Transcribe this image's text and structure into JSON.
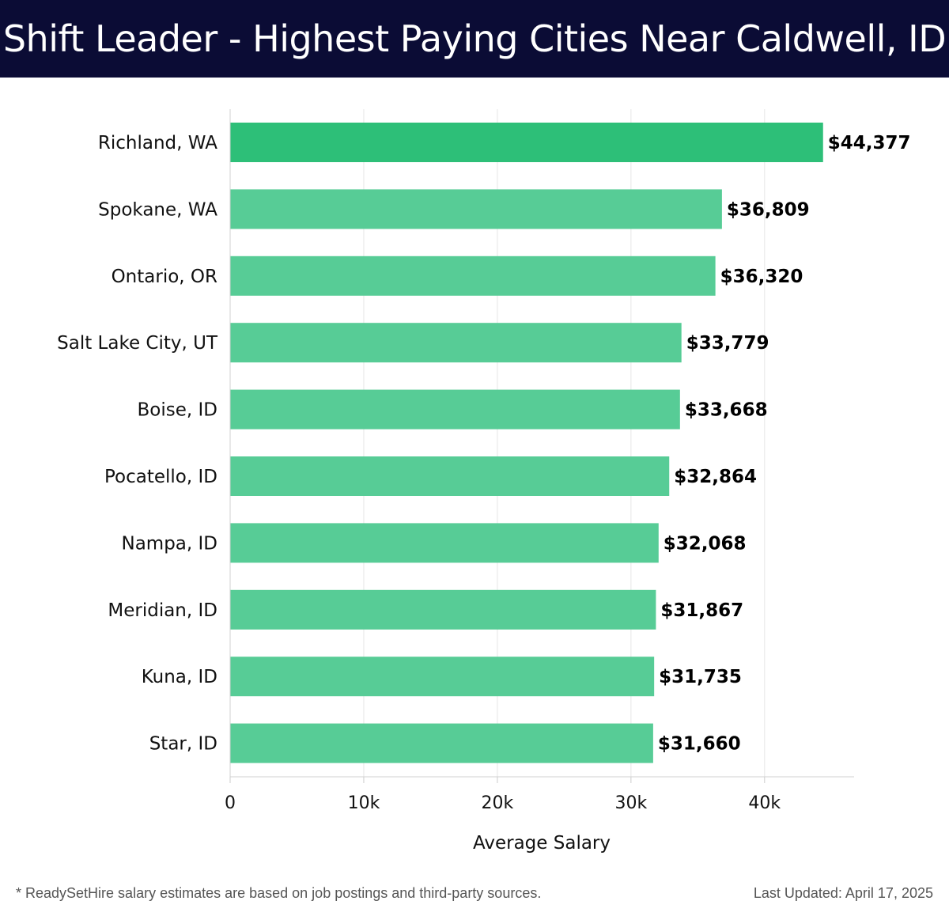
{
  "header": {
    "title": "Shift Leader - Highest Paying Cities Near Caldwell, ID"
  },
  "chart_data": {
    "type": "bar",
    "orientation": "horizontal",
    "categories": [
      "Richland, WA",
      "Spokane, WA",
      "Ontario, OR",
      "Salt Lake City, UT",
      "Boise, ID",
      "Pocatello, ID",
      "Nampa, ID",
      "Meridian, ID",
      "Kuna, ID",
      "Star, ID"
    ],
    "values": [
      44377,
      36809,
      36320,
      33779,
      33668,
      32864,
      32068,
      31867,
      31735,
      31660
    ],
    "value_labels": [
      "$44,377",
      "$36,809",
      "$36,320",
      "$33,779",
      "$33,668",
      "$32,864",
      "$32,068",
      "$31,867",
      "$31,735",
      "$31,660"
    ],
    "xlabel": "Average Salary",
    "ylabel": "",
    "xlim": [
      0,
      46700
    ],
    "xticks": [
      0,
      10000,
      20000,
      30000,
      40000
    ],
    "xtick_labels": [
      "0",
      "10k",
      "20k",
      "30k",
      "40k"
    ],
    "grid": "vertical",
    "colors": {
      "highlight": "#2dbf78",
      "bar": "#57cc96",
      "label": "#000000",
      "grid": "#e6e6e6"
    }
  },
  "footer": {
    "note": "* ReadySetHire salary estimates are based on job postings and third-party sources.",
    "updated": "Last Updated: April 17, 2025"
  }
}
